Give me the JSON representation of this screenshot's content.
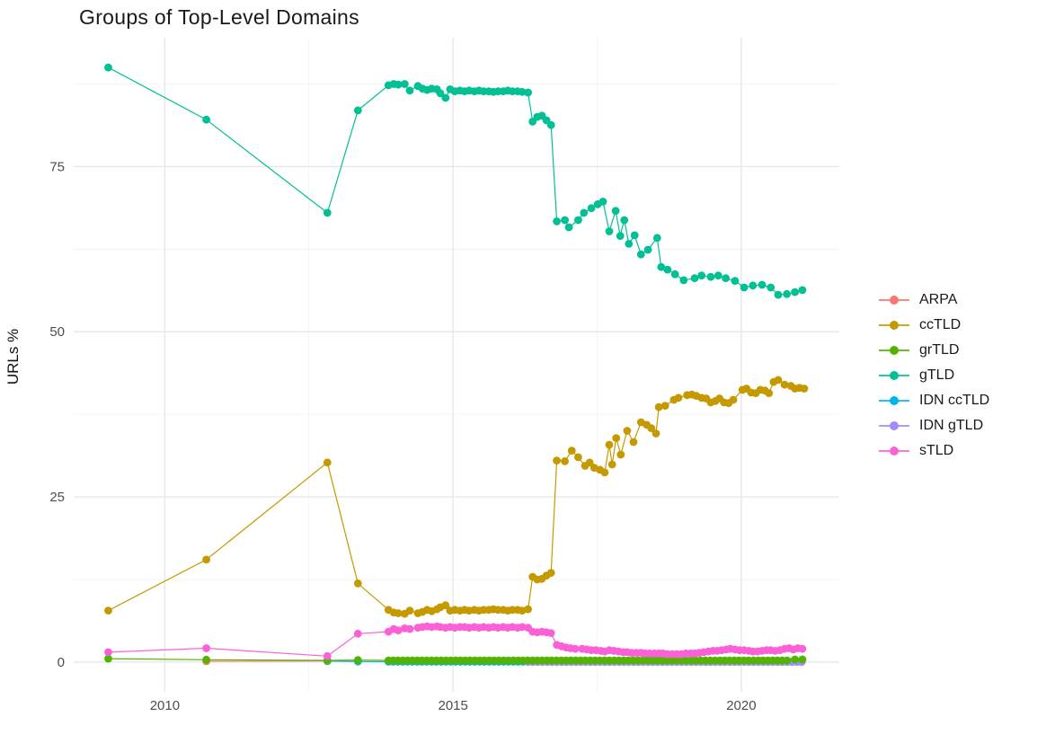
{
  "chart_data": {
    "type": "line",
    "title": "Groups of Top-Level Domains",
    "xlabel": "",
    "ylabel": "URLs %",
    "x_ticks": [
      2010,
      2015,
      2020
    ],
    "x_minor_ticks": [
      2012.5,
      2017.5
    ],
    "y_ticks": [
      0,
      25,
      50,
      75
    ],
    "y_minor_ticks": [
      12.5,
      37.5,
      62.5,
      87.5
    ],
    "xlim": [
      2008.42,
      2021.7
    ],
    "ylim": [
      -4.5,
      94.5
    ],
    "grid": true,
    "legend_position": "right",
    "point_radius": 4.4,
    "draw_order": [
      "ARPA",
      "IDN ccTLD",
      "IDN gTLD",
      "grTLD",
      "gTLD",
      "ccTLD",
      "sTLD"
    ],
    "series": [
      {
        "name": "ARPA",
        "color": "#F8766D",
        "points": [
          [
            2010.72,
            0.12
          ],
          [
            2012.82,
            0.18
          ],
          [
            2013.35,
            0.1
          ]
        ]
      },
      {
        "name": "ccTLD",
        "color": "#C49A00",
        "points": [
          [
            2009.02,
            7.8
          ],
          [
            2010.72,
            15.5
          ],
          [
            2012.82,
            30.2
          ],
          [
            2013.35,
            11.9
          ],
          [
            2013.88,
            7.9
          ],
          [
            2013.97,
            7.5
          ],
          [
            2014.05,
            7.4
          ],
          [
            2014.16,
            7.3
          ],
          [
            2014.25,
            7.8
          ],
          [
            2014.39,
            7.4
          ],
          [
            2014.47,
            7.6
          ],
          [
            2014.55,
            7.9
          ],
          [
            2014.63,
            7.7
          ],
          [
            2014.72,
            8.0
          ],
          [
            2014.78,
            8.3
          ],
          [
            2014.87,
            8.6
          ],
          [
            2014.95,
            7.8
          ],
          [
            2015.03,
            7.9
          ],
          [
            2015.12,
            7.8
          ],
          [
            2015.2,
            7.9
          ],
          [
            2015.28,
            7.8
          ],
          [
            2015.37,
            7.9
          ],
          [
            2015.45,
            7.8
          ],
          [
            2015.53,
            7.9
          ],
          [
            2015.62,
            7.9
          ],
          [
            2015.7,
            8.0
          ],
          [
            2015.78,
            7.9
          ],
          [
            2015.87,
            7.9
          ],
          [
            2015.95,
            7.8
          ],
          [
            2016.03,
            7.9
          ],
          [
            2016.12,
            7.9
          ],
          [
            2016.2,
            7.8
          ],
          [
            2016.3,
            8.0
          ],
          [
            2016.38,
            12.9
          ],
          [
            2016.46,
            12.5
          ],
          [
            2016.54,
            12.6
          ],
          [
            2016.62,
            13.1
          ],
          [
            2016.7,
            13.5
          ],
          [
            2016.8,
            30.5
          ],
          [
            2016.94,
            30.4
          ],
          [
            2017.06,
            32.0
          ],
          [
            2017.17,
            31.0
          ],
          [
            2017.29,
            29.7
          ],
          [
            2017.37,
            30.2
          ],
          [
            2017.45,
            29.4
          ],
          [
            2017.55,
            29.1
          ],
          [
            2017.63,
            28.7
          ],
          [
            2017.71,
            32.9
          ],
          [
            2017.76,
            29.9
          ],
          [
            2017.83,
            33.9
          ],
          [
            2017.91,
            31.4
          ],
          [
            2018.02,
            35.0
          ],
          [
            2018.13,
            33.3
          ],
          [
            2018.26,
            36.3
          ],
          [
            2018.36,
            35.9
          ],
          [
            2018.44,
            35.4
          ],
          [
            2018.52,
            34.6
          ],
          [
            2018.57,
            38.6
          ],
          [
            2018.68,
            38.8
          ],
          [
            2018.83,
            39.7
          ],
          [
            2018.91,
            40.0
          ],
          [
            2019.06,
            40.4
          ],
          [
            2019.14,
            40.5
          ],
          [
            2019.22,
            40.3
          ],
          [
            2019.31,
            40.0
          ],
          [
            2019.39,
            39.9
          ],
          [
            2019.47,
            39.3
          ],
          [
            2019.55,
            39.5
          ],
          [
            2019.62,
            39.9
          ],
          [
            2019.7,
            39.3
          ],
          [
            2019.78,
            39.2
          ],
          [
            2019.86,
            39.7
          ],
          [
            2020.02,
            41.2
          ],
          [
            2020.09,
            41.4
          ],
          [
            2020.17,
            40.8
          ],
          [
            2020.25,
            40.7
          ],
          [
            2020.33,
            41.2
          ],
          [
            2020.41,
            41.1
          ],
          [
            2020.48,
            40.7
          ],
          [
            2020.56,
            42.4
          ],
          [
            2020.64,
            42.7
          ],
          [
            2020.75,
            42.0
          ],
          [
            2020.86,
            41.8
          ],
          [
            2020.93,
            41.4
          ],
          [
            2021.01,
            41.5
          ],
          [
            2021.09,
            41.4
          ]
        ]
      },
      {
        "name": "grTLD",
        "color": "#53B400",
        "points": [
          [
            2009.02,
            0.5
          ],
          [
            2010.72,
            0.35
          ],
          [
            2012.82,
            0.25
          ],
          [
            2013.35,
            0.3
          ],
          [
            2020.93,
            0.4
          ],
          [
            2021.06,
            0.4
          ]
        ],
        "runs": [
          {
            "from": 2013.88,
            "to": 2020.85,
            "step": 0.0833,
            "value": 0.25
          }
        ]
      },
      {
        "name": "gTLD",
        "color": "#00C094",
        "points": [
          [
            2009.02,
            90.0
          ],
          [
            2010.72,
            82.1
          ],
          [
            2012.82,
            68.0
          ],
          [
            2013.35,
            83.5
          ],
          [
            2013.88,
            87.3
          ],
          [
            2013.97,
            87.5
          ],
          [
            2014.05,
            87.4
          ],
          [
            2014.16,
            87.5
          ],
          [
            2014.25,
            86.5
          ],
          [
            2014.39,
            87.2
          ],
          [
            2014.47,
            86.8
          ],
          [
            2014.55,
            86.6
          ],
          [
            2014.63,
            86.8
          ],
          [
            2014.72,
            86.7
          ],
          [
            2014.78,
            86.1
          ],
          [
            2014.87,
            85.4
          ],
          [
            2014.95,
            86.7
          ],
          [
            2015.03,
            86.4
          ],
          [
            2015.12,
            86.5
          ],
          [
            2015.2,
            86.4
          ],
          [
            2015.28,
            86.5
          ],
          [
            2015.37,
            86.4
          ],
          [
            2015.45,
            86.5
          ],
          [
            2015.53,
            86.4
          ],
          [
            2015.62,
            86.4
          ],
          [
            2015.7,
            86.3
          ],
          [
            2015.78,
            86.4
          ],
          [
            2015.87,
            86.4
          ],
          [
            2015.95,
            86.5
          ],
          [
            2016.03,
            86.4
          ],
          [
            2016.12,
            86.4
          ],
          [
            2016.2,
            86.3
          ],
          [
            2016.3,
            86.2
          ],
          [
            2016.38,
            81.8
          ],
          [
            2016.46,
            82.5
          ],
          [
            2016.54,
            82.7
          ],
          [
            2016.62,
            82.0
          ],
          [
            2016.7,
            81.3
          ],
          [
            2016.8,
            66.7
          ],
          [
            2016.94,
            66.9
          ],
          [
            2017.01,
            65.8
          ],
          [
            2017.17,
            66.9
          ],
          [
            2017.27,
            68.0
          ],
          [
            2017.4,
            68.7
          ],
          [
            2017.51,
            69.3
          ],
          [
            2017.6,
            69.7
          ],
          [
            2017.71,
            65.2
          ],
          [
            2017.82,
            68.3
          ],
          [
            2017.9,
            64.5
          ],
          [
            2017.97,
            66.9
          ],
          [
            2018.05,
            63.3
          ],
          [
            2018.15,
            64.6
          ],
          [
            2018.26,
            61.7
          ],
          [
            2018.38,
            62.4
          ],
          [
            2018.54,
            64.2
          ],
          [
            2018.61,
            59.8
          ],
          [
            2018.72,
            59.4
          ],
          [
            2018.85,
            58.7
          ],
          [
            2019.0,
            57.8
          ],
          [
            2019.19,
            58.1
          ],
          [
            2019.31,
            58.5
          ],
          [
            2019.47,
            58.3
          ],
          [
            2019.6,
            58.5
          ],
          [
            2019.73,
            58.1
          ],
          [
            2019.89,
            57.7
          ],
          [
            2020.05,
            56.7
          ],
          [
            2020.2,
            57.0
          ],
          [
            2020.36,
            57.1
          ],
          [
            2020.51,
            56.7
          ],
          [
            2020.64,
            55.6
          ],
          [
            2020.79,
            55.7
          ],
          [
            2020.93,
            56.0
          ],
          [
            2021.06,
            56.3
          ]
        ]
      },
      {
        "name": "IDN ccTLD",
        "color": "#00B6EB",
        "points": [
          [
            2012.82,
            0.15
          ],
          [
            2013.35,
            0.08
          ]
        ],
        "runs": [
          {
            "from": 2013.88,
            "to": 2021.06,
            "step": 0.0833,
            "value": 0.05
          }
        ]
      },
      {
        "name": "IDN gTLD",
        "color": "#A58AFF",
        "points": [],
        "runs": [
          {
            "from": 2016.3,
            "to": 2021.06,
            "step": 0.0833,
            "value": 0.02
          }
        ]
      },
      {
        "name": "sTLD",
        "color": "#FB61D7",
        "points": [
          [
            2009.02,
            1.5
          ],
          [
            2010.72,
            2.1
          ],
          [
            2012.82,
            0.9
          ],
          [
            2013.35,
            4.3
          ],
          [
            2013.88,
            4.6
          ],
          [
            2013.97,
            5.0
          ],
          [
            2014.05,
            4.8
          ],
          [
            2014.16,
            5.1
          ],
          [
            2014.25,
            5.0
          ],
          [
            2014.39,
            5.2
          ],
          [
            2014.47,
            5.3
          ],
          [
            2014.55,
            5.4
          ],
          [
            2014.63,
            5.3
          ],
          [
            2014.72,
            5.4
          ],
          [
            2014.78,
            5.3
          ],
          [
            2014.87,
            5.2
          ],
          [
            2014.95,
            5.3
          ],
          [
            2015.03,
            5.2
          ],
          [
            2015.12,
            5.3
          ],
          [
            2015.2,
            5.3
          ],
          [
            2015.28,
            5.2
          ],
          [
            2015.37,
            5.3
          ],
          [
            2015.45,
            5.2
          ],
          [
            2015.53,
            5.3
          ],
          [
            2015.62,
            5.2
          ],
          [
            2015.7,
            5.3
          ],
          [
            2015.78,
            5.2
          ],
          [
            2015.87,
            5.3
          ],
          [
            2015.95,
            5.2
          ],
          [
            2016.03,
            5.3
          ],
          [
            2016.12,
            5.2
          ],
          [
            2016.2,
            5.3
          ],
          [
            2016.3,
            5.2
          ],
          [
            2016.38,
            4.6
          ],
          [
            2016.46,
            4.5
          ],
          [
            2016.54,
            4.6
          ],
          [
            2016.62,
            4.5
          ],
          [
            2016.7,
            4.4
          ],
          [
            2016.8,
            2.6
          ],
          [
            2016.88,
            2.4
          ],
          [
            2016.96,
            2.2
          ],
          [
            2017.04,
            2.1
          ],
          [
            2017.12,
            2.0
          ],
          [
            2017.24,
            2.0
          ],
          [
            2017.32,
            1.9
          ],
          [
            2017.4,
            1.8
          ],
          [
            2017.48,
            1.8
          ],
          [
            2017.56,
            1.7
          ],
          [
            2017.63,
            1.6
          ],
          [
            2017.71,
            1.8
          ],
          [
            2017.79,
            1.7
          ],
          [
            2017.87,
            1.6
          ],
          [
            2017.95,
            1.5
          ],
          [
            2018.02,
            1.5
          ],
          [
            2018.1,
            1.4
          ],
          [
            2018.18,
            1.4
          ],
          [
            2018.26,
            1.4
          ],
          [
            2018.33,
            1.3
          ],
          [
            2018.41,
            1.3
          ],
          [
            2018.49,
            1.3
          ],
          [
            2018.57,
            1.3
          ],
          [
            2018.64,
            1.3
          ],
          [
            2018.72,
            1.2
          ],
          [
            2018.8,
            1.2
          ],
          [
            2018.88,
            1.2
          ],
          [
            2018.96,
            1.2
          ],
          [
            2019.04,
            1.3
          ],
          [
            2019.12,
            1.3
          ],
          [
            2019.19,
            1.3
          ],
          [
            2019.27,
            1.4
          ],
          [
            2019.35,
            1.5
          ],
          [
            2019.43,
            1.6
          ],
          [
            2019.51,
            1.7
          ],
          [
            2019.58,
            1.7
          ],
          [
            2019.66,
            1.8
          ],
          [
            2019.74,
            1.9
          ],
          [
            2019.81,
            2.0
          ],
          [
            2019.89,
            1.9
          ],
          [
            2019.97,
            1.8
          ],
          [
            2020.05,
            1.8
          ],
          [
            2020.13,
            1.7
          ],
          [
            2020.2,
            1.6
          ],
          [
            2020.28,
            1.6
          ],
          [
            2020.36,
            1.7
          ],
          [
            2020.44,
            1.8
          ],
          [
            2020.51,
            1.8
          ],
          [
            2020.59,
            1.7
          ],
          [
            2020.67,
            1.8
          ],
          [
            2020.75,
            2.0
          ],
          [
            2020.83,
            2.1
          ],
          [
            2020.9,
            1.9
          ],
          [
            2020.98,
            2.1
          ],
          [
            2021.06,
            2.0
          ]
        ]
      }
    ]
  },
  "colors": {
    "background": "#ffffff",
    "grid_major": "#e7e7e7",
    "grid_minor": "#f1f1f1",
    "axis_text": "#4d4d4d",
    "text": "#1a1a1a"
  }
}
